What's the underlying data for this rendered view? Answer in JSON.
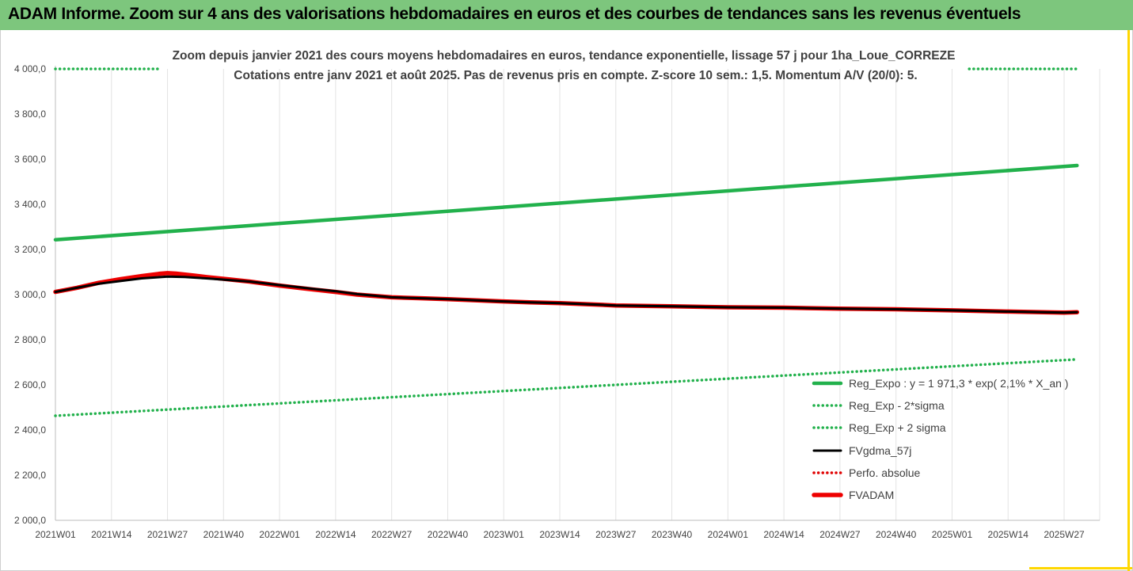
{
  "header": {
    "title": "ADAM Informe. Zoom sur 4 ans des valorisations hebdomadaires en euros et des courbes de tendances sans les revenus éventuels"
  },
  "chart_data": {
    "type": "line",
    "title_line1": "Zoom depuis janvier 2021 des cours moyens hebdomadaires en euros, tendance exponentielle, lissage 57 j pour 1ha_Loue_CORREZE",
    "title_line2": "Cotations entre janv 2021 et août 2025.  Pas de revenus pris en compte. Z-score 10 sem.: 1,5. Momentum A/V (20/0): 5.",
    "x_ticks": [
      "2021W01",
      "2021W14",
      "2021W27",
      "2021W40",
      "2022W01",
      "2022W14",
      "2022W27",
      "2022W40",
      "2023W01",
      "2023W14",
      "2023W27",
      "2023W40",
      "2024W01",
      "2024W14",
      "2024W27",
      "2024W40",
      "2025W01",
      "2025W14",
      "2025W27"
    ],
    "y_ticks": [
      "2 000,0",
      "2 200,0",
      "2 400,0",
      "2 600,0",
      "2 800,0",
      "3 000,0",
      "3 200,0",
      "3 400,0",
      "3 600,0",
      "3 800,0",
      "4 000,0"
    ],
    "ylim": [
      2000,
      4000
    ],
    "grid": "vertical",
    "legend_position": "right",
    "x_week_index": [
      0,
      13,
      26,
      39,
      52,
      65,
      78,
      91,
      104,
      117,
      130,
      143,
      156,
      169,
      182,
      195,
      208,
      221,
      234
    ],
    "x_end_index": 237,
    "series": [
      {
        "name": "Reg_Expo : y = 1 971,3 * exp( 2,1% *  X_an )",
        "style": "solid",
        "color": "#22b14c",
        "x": [
          0,
          237
        ],
        "y": [
          3243,
          3572
        ]
      },
      {
        "name": "Reg_Exp - 2*sigma",
        "style": "dotted",
        "color": "#22b14c",
        "x": [
          0,
          237
        ],
        "y": [
          2463,
          2713
        ]
      },
      {
        "name": "Reg_Exp + 2 sigma",
        "style": "dotted",
        "color": "#22b14c",
        "x": [
          0,
          24,
          212,
          237
        ],
        "y": [
          4000,
          4000,
          4000,
          4000
        ],
        "segments": [
          [
            0,
            1
          ],
          [
            2,
            3
          ]
        ]
      },
      {
        "name": "FVgdma_57j",
        "style": "solid",
        "color": "#000000",
        "x": [
          0,
          5,
          10,
          15,
          20,
          26,
          30,
          35,
          40,
          45,
          52,
          60,
          65,
          70,
          78,
          85,
          91,
          100,
          104,
          110,
          117,
          125,
          130,
          143,
          156,
          169,
          182,
          195,
          208,
          221,
          234,
          237
        ],
        "y": [
          3012,
          3030,
          3048,
          3060,
          3072,
          3080,
          3078,
          3072,
          3065,
          3058,
          3042,
          3025,
          3015,
          3002,
          2988,
          2984,
          2980,
          2973,
          2970,
          2966,
          2962,
          2956,
          2952,
          2948,
          2944,
          2942,
          2938,
          2935,
          2930,
          2925,
          2920,
          2922
        ]
      },
      {
        "name": "Perfo. absolue",
        "style": "dotted",
        "color": "#e00000",
        "x": [],
        "y": []
      },
      {
        "name": "FVADAM",
        "style": "solid",
        "color": "#ee0000",
        "x": [
          0,
          5,
          10,
          15,
          20,
          24,
          26,
          28,
          32,
          35,
          40,
          45,
          52,
          60,
          65,
          70,
          78,
          85,
          91,
          100,
          104,
          110,
          117,
          125,
          130,
          143,
          156,
          169,
          182,
          195,
          208,
          221,
          234,
          237
        ],
        "y": [
          3012,
          3030,
          3052,
          3068,
          3082,
          3092,
          3095,
          3093,
          3085,
          3078,
          3068,
          3058,
          3040,
          3022,
          3012,
          3000,
          2988,
          2984,
          2980,
          2973,
          2970,
          2966,
          2962,
          2956,
          2952,
          2948,
          2944,
          2942,
          2938,
          2935,
          2930,
          2925,
          2920,
          2922
        ]
      }
    ]
  }
}
